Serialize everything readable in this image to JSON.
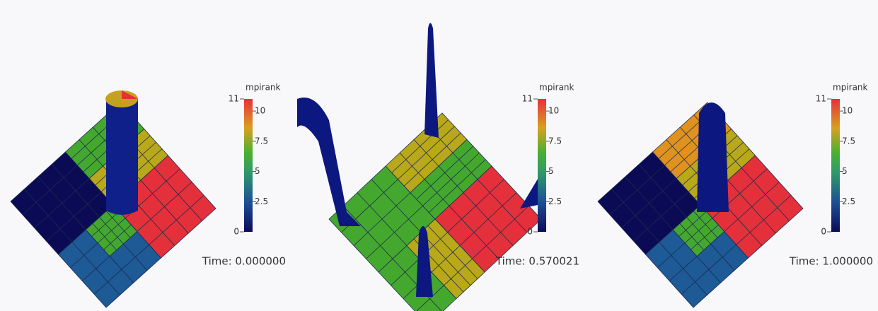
{
  "panels": [
    {
      "time_label": "Time: 0.000000",
      "colorbar": {
        "title": "mpirank",
        "range": [
          0,
          11
        ],
        "ticks": [
          2.5,
          5,
          7.5,
          10
        ]
      }
    },
    {
      "time_label": "Time: 0.570021",
      "colorbar": {
        "title": "mpirank",
        "range": [
          0,
          11
        ],
        "ticks": [
          2.5,
          5,
          7.5,
          10
        ]
      }
    },
    {
      "time_label": "Time: 1.000000",
      "colorbar": {
        "title": "mpirank",
        "range": [
          0,
          11
        ],
        "ticks": [
          2.5,
          5,
          7.5,
          10
        ]
      }
    }
  ]
}
